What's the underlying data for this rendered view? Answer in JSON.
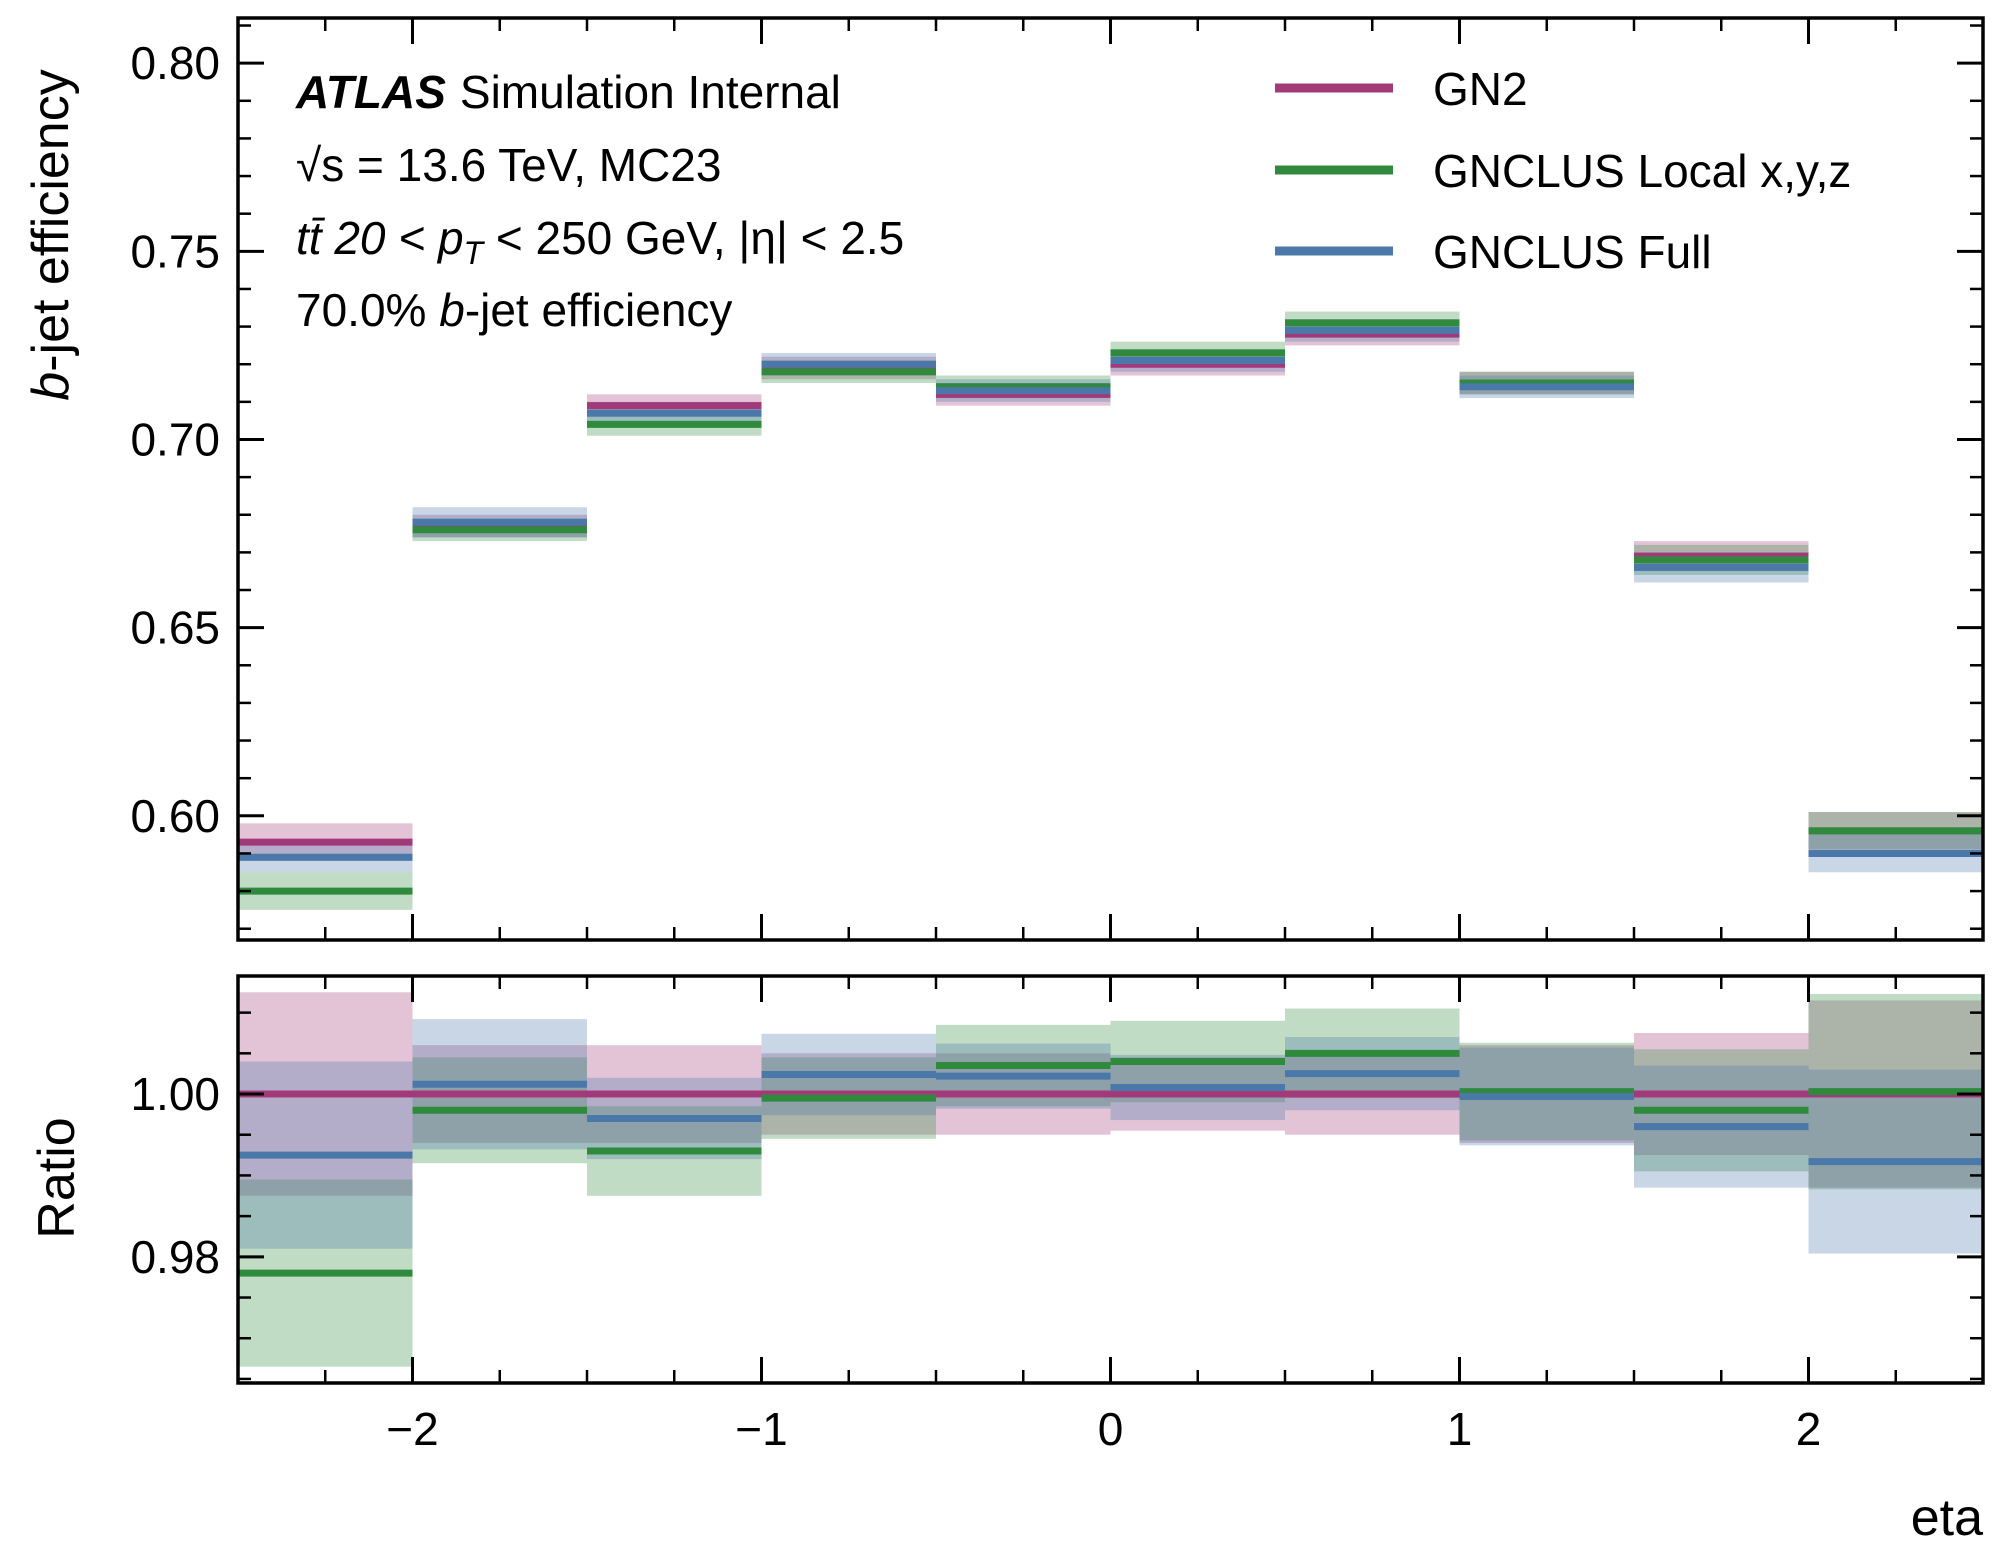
{
  "chart_data": [
    {
      "type": "line",
      "style": "step",
      "panel": "main",
      "ylabel": "b-jet efficiency",
      "xlim": [
        -2.5,
        2.5
      ],
      "ylim": [
        0.567,
        0.812
      ],
      "yticks": [
        0.6,
        0.65,
        0.7,
        0.75,
        0.8
      ],
      "ytick_labels": [
        "0.60",
        "0.65",
        "0.70",
        "0.75",
        "0.80"
      ],
      "bins": [
        [
          -2.5,
          -2.0
        ],
        [
          -2.0,
          -1.5
        ],
        [
          -1.5,
          -1.0
        ],
        [
          -1.0,
          -0.5
        ],
        [
          -0.5,
          0.0
        ],
        [
          0.0,
          0.5
        ],
        [
          0.5,
          1.0
        ],
        [
          1.0,
          1.5
        ],
        [
          1.5,
          2.0
        ],
        [
          2.0,
          2.5
        ]
      ],
      "series": [
        {
          "name": "GN2",
          "color": "#a23a7a",
          "values": [
            0.593,
            0.677,
            0.709,
            0.719,
            0.712,
            0.72,
            0.728,
            0.715,
            0.669,
            0.596
          ],
          "err": [
            0.005,
            0.003,
            0.003,
            0.003,
            0.003,
            0.003,
            0.003,
            0.003,
            0.004,
            0.005
          ]
        },
        {
          "name": "GNCLUS Local x,y,z",
          "color": "#2f8a3e",
          "values": [
            0.58,
            0.676,
            0.704,
            0.718,
            0.714,
            0.723,
            0.731,
            0.715,
            0.668,
            0.596
          ],
          "err": [
            0.005,
            0.003,
            0.003,
            0.003,
            0.003,
            0.003,
            0.003,
            0.003,
            0.004,
            0.005
          ]
        },
        {
          "name": "GNCLUS Full",
          "color": "#4a78a8",
          "values": [
            0.589,
            0.678,
            0.707,
            0.72,
            0.713,
            0.721,
            0.729,
            0.714,
            0.666,
            0.59
          ],
          "err": [
            0.004,
            0.004,
            0.003,
            0.003,
            0.003,
            0.003,
            0.003,
            0.003,
            0.004,
            0.005
          ]
        }
      ]
    },
    {
      "type": "line",
      "style": "step",
      "panel": "ratio",
      "xlabel": "eta",
      "ylabel": "Ratio",
      "xlim": [
        -2.5,
        2.5
      ],
      "ylim": [
        0.9645,
        1.0145
      ],
      "xticks": [
        -2,
        -1,
        0,
        1,
        2
      ],
      "xtick_labels": [
        "−2",
        "−1",
        "0",
        "1",
        "2"
      ],
      "yticks": [
        0.98,
        1.0
      ],
      "ytick_labels": [
        "0.98",
        "1.00"
      ],
      "series": [
        {
          "name": "GN2",
          "color": "#a23a7a",
          "values": [
            1.0,
            1.0,
            1.0,
            1.0,
            1.0,
            1.0,
            1.0,
            1.0,
            1.0,
            1.0
          ],
          "err": [
            0.0125,
            0.006,
            0.006,
            0.005,
            0.005,
            0.0045,
            0.005,
            0.006,
            0.0075,
            0.0115
          ]
        },
        {
          "name": "GNCLUS Local x,y,z",
          "color": "#2f8a3e",
          "values": [
            0.978,
            0.998,
            0.993,
            0.9995,
            1.0035,
            1.004,
            1.005,
            1.0003,
            0.998,
            1.0003
          ],
          "err": [
            0.0115,
            0.0065,
            0.0055,
            0.005,
            0.005,
            0.005,
            0.0055,
            0.006,
            0.0075,
            0.012
          ]
        },
        {
          "name": "GNCLUS Full",
          "color": "#4a78a8",
          "values": [
            0.9925,
            1.0012,
            0.997,
            1.0024,
            1.0022,
            1.0008,
            1.0025,
            0.9997,
            0.996,
            0.9917
          ],
          "err": [
            0.0115,
            0.008,
            0.005,
            0.005,
            0.004,
            0.004,
            0.0045,
            0.006,
            0.0075,
            0.0113
          ]
        }
      ]
    }
  ],
  "annotations": {
    "experiment": "ATLAS",
    "status": "Simulation Internal",
    "line2": "√s = 13.6 TeV, MC23",
    "line3_pre": "tt̄ 20 < ",
    "line3_pt": "p",
    "line3_sub": "T",
    "line3_post": " < 250 GeV, |η| < 2.5",
    "line4_pre": "70.0% ",
    "line4_b": "b",
    "line4_post": "-jet efficiency"
  },
  "legend": {
    "placement": "top-right",
    "items": [
      "GN2",
      "GNCLUS Local x,y,z",
      "GNCLUS Full"
    ],
    "colors": [
      "#a23a7a",
      "#2f8a3e",
      "#4a78a8"
    ]
  }
}
